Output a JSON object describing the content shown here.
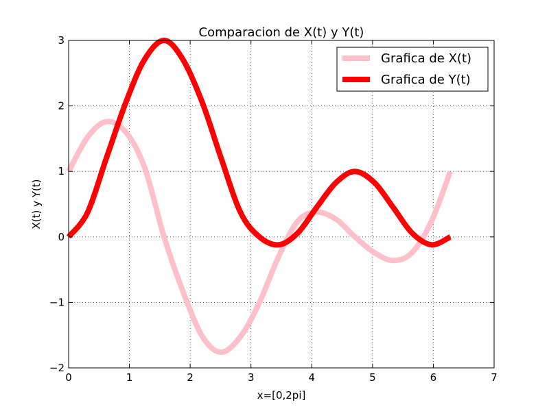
{
  "chart_data": {
    "type": "line",
    "title": "Comparacion de X(t) y Y(t)",
    "xlabel": "x=[0,2pi]",
    "ylabel": "X(t) y Y(t)",
    "xlim": [
      0,
      7
    ],
    "ylim": [
      -2,
      3
    ],
    "xticks": [
      0,
      1,
      2,
      3,
      4,
      5,
      6,
      7
    ],
    "yticks": [
      -2,
      -1,
      0,
      1,
      2,
      3
    ],
    "xtick_labels": [
      "0",
      "1",
      "2",
      "3",
      "4",
      "5",
      "6",
      "7"
    ],
    "ytick_labels": [
      "−2",
      "−1",
      "0",
      "1",
      "2",
      "3"
    ],
    "grid": true,
    "legend_position": "top-right",
    "x_range": [
      0,
      6.283
    ],
    "series": [
      {
        "name": "Grafica de X(t)",
        "color": "#ffc0cb",
        "points": [
          [
            0,
            1.0
          ],
          [
            0.31,
            1.52
          ],
          [
            0.62,
            1.76
          ],
          [
            0.94,
            1.6
          ],
          [
            1.25,
            1.06
          ],
          [
            1.57,
            0.0
          ],
          [
            1.88,
            -0.83
          ],
          [
            2.2,
            -1.52
          ],
          [
            2.51,
            -1.76
          ],
          [
            2.83,
            -1.52
          ],
          [
            3.14,
            -1.0
          ],
          [
            3.46,
            -0.29
          ],
          [
            3.77,
            0.24
          ],
          [
            4.08,
            0.38
          ],
          [
            4.4,
            0.27
          ],
          [
            4.71,
            0.0
          ],
          [
            5.03,
            -0.24
          ],
          [
            5.34,
            -0.36
          ],
          [
            5.65,
            -0.24
          ],
          [
            5.97,
            0.24
          ],
          [
            6.28,
            1.0
          ]
        ]
      },
      {
        "name": "Grafica de Y(t)",
        "color": "#ff0000",
        "points": [
          [
            0,
            0.0
          ],
          [
            0.31,
            0.37
          ],
          [
            0.62,
            1.2
          ],
          [
            0.94,
            2.05
          ],
          [
            1.25,
            2.71
          ],
          [
            1.57,
            3.0
          ],
          [
            1.88,
            2.71
          ],
          [
            2.2,
            2.05
          ],
          [
            2.51,
            1.2
          ],
          [
            2.83,
            0.37
          ],
          [
            3.14,
            0.0
          ],
          [
            3.46,
            -0.12
          ],
          [
            3.77,
            0.06
          ],
          [
            4.08,
            0.45
          ],
          [
            4.4,
            0.83
          ],
          [
            4.71,
            1.0
          ],
          [
            5.03,
            0.83
          ],
          [
            5.34,
            0.45
          ],
          [
            5.65,
            0.06
          ],
          [
            5.97,
            -0.12
          ],
          [
            6.28,
            0.0
          ]
        ]
      }
    ]
  }
}
